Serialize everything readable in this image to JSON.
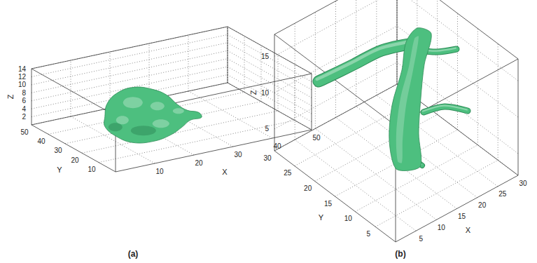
{
  "chart_data": [
    {
      "type": "isosurface3d",
      "label": "(a)",
      "x_label": "X",
      "y_label": "Y",
      "z_label": "Z",
      "xlim": [
        0,
        50
      ],
      "xticks": [
        10,
        20,
        30,
        40,
        50
      ],
      "ylim": [
        0,
        50
      ],
      "yticks": [
        10,
        20,
        30,
        40,
        50
      ],
      "zlim": [
        0,
        14
      ],
      "zticks": [
        2,
        4,
        6,
        8,
        10,
        12,
        14
      ],
      "color": "#4dbf7f",
      "grid": true
    },
    {
      "type": "isosurface3d",
      "label": "(b)",
      "x_label": "X",
      "y_label": "Y",
      "z_label": "Z",
      "xlim": [
        0,
        30
      ],
      "xticks": [
        5,
        10,
        15,
        20,
        25,
        30
      ],
      "ylim": [
        0,
        30
      ],
      "yticks": [
        5,
        10,
        15,
        20,
        25,
        30
      ],
      "zlim": [
        2,
        18
      ],
      "zticks": [
        5,
        10,
        15
      ],
      "color": "#4dbf7f",
      "grid": true
    }
  ]
}
